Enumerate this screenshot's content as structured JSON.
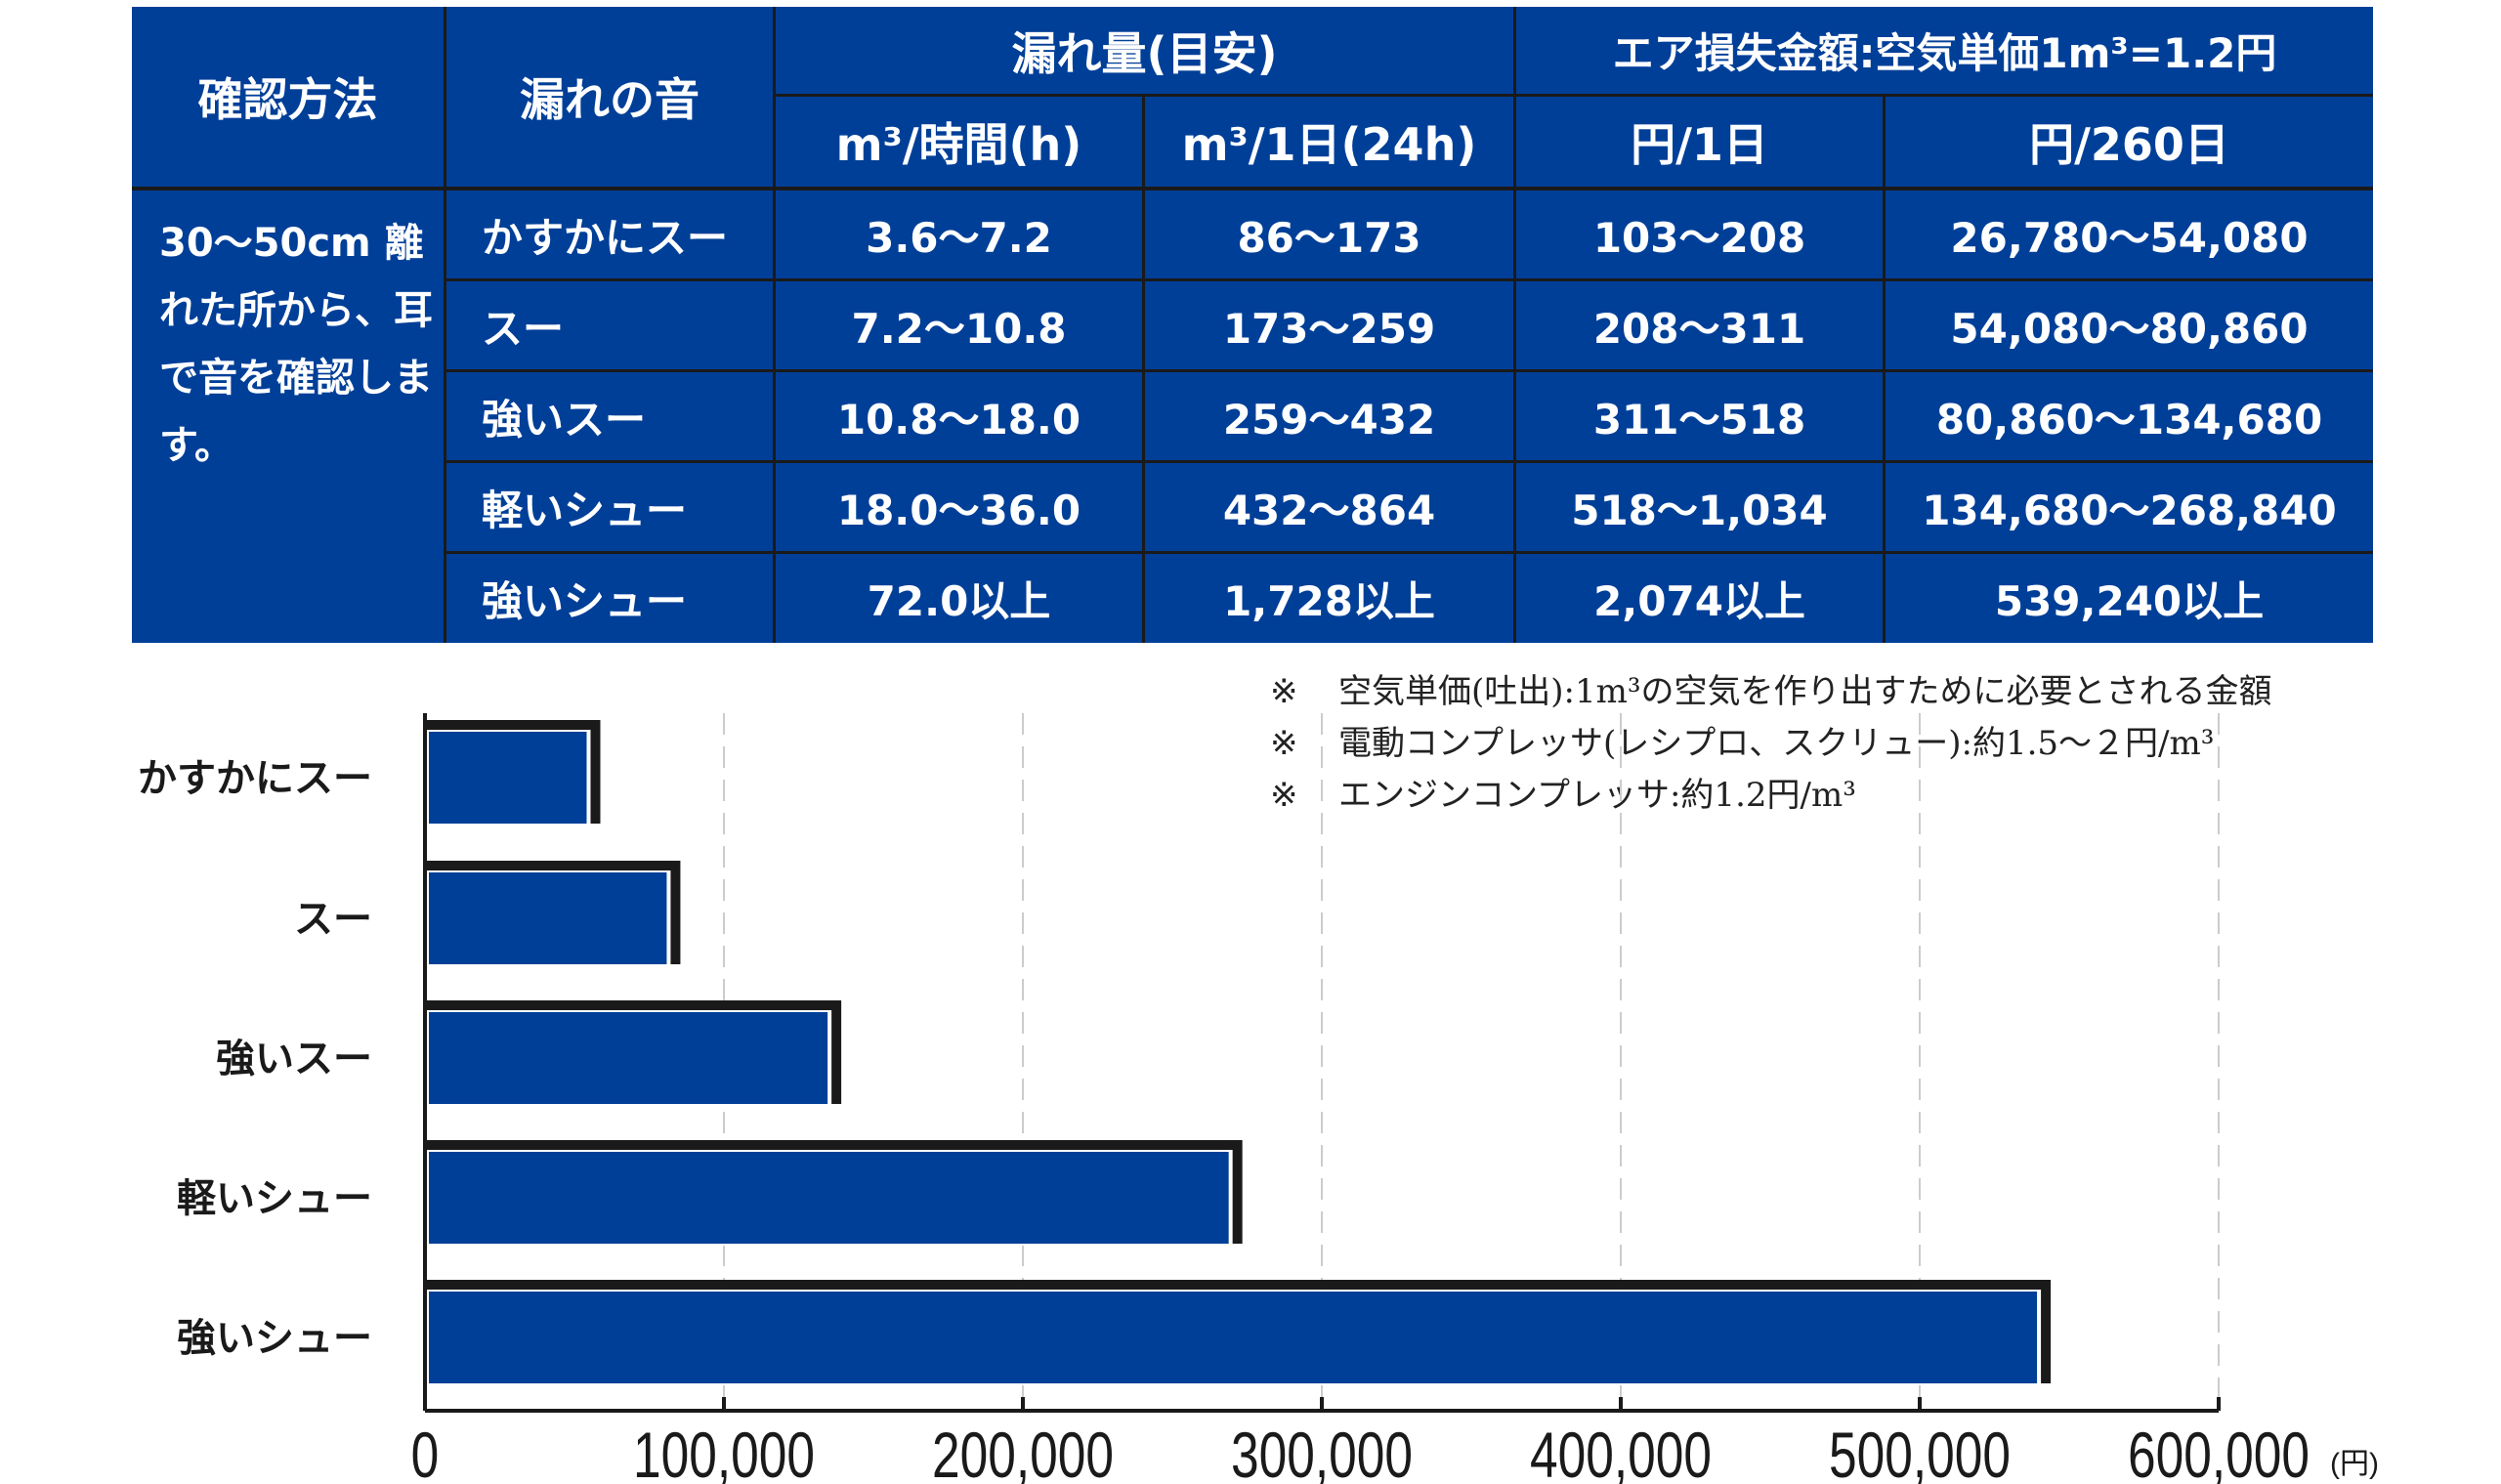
{
  "table": {
    "headers": {
      "method": "確認方法",
      "sound": "漏れの音",
      "leak_amount": "漏れ量(目安)",
      "loss_title": "エア損失金額:空気単価1m³=1.2円",
      "per_hour": "m³/時間(h)",
      "per_day": "m³/1日(24h)",
      "yen_day": "円/1日",
      "yen_260": "円/260日"
    },
    "method_text": "30〜50cm 離れた所から、耳で音を確認します。",
    "rows": [
      {
        "sound": "かすかにスー",
        "per_hour": "3.6〜7.2",
        "per_day": "86〜173",
        "yen_day": "103〜208",
        "yen_260": "26,780〜54,080"
      },
      {
        "sound": "スー",
        "per_hour": "7.2〜10.8",
        "per_day": "173〜259",
        "yen_day": "208〜311",
        "yen_260": "54,080〜80,860"
      },
      {
        "sound": "強いスー",
        "per_hour": "10.8〜18.0",
        "per_day": "259〜432",
        "yen_day": "311〜518",
        "yen_260": "80,860〜134,680"
      },
      {
        "sound": "軽いシュー",
        "per_hour": "18.0〜36.0",
        "per_day": "432〜864",
        "yen_day": "518〜1,034",
        "yen_260": "134,680〜268,840"
      },
      {
        "sound": "強いシュー",
        "per_hour": "72.0以上",
        "per_day": "1,728以上",
        "yen_day": "2,074以上",
        "yen_260": "539,240以上"
      }
    ]
  },
  "notes": [
    {
      "mark": "※",
      "text": "空気単価(吐出):1m³の空気を作り出すために必要とされる金額"
    },
    {
      "mark": "※",
      "text": "電動コンプレッサ(レシプロ、スクリュー):約1.5〜２円/m³"
    },
    {
      "mark": "※",
      "text": "エンジンコンプレッサ:約1.2円/m³"
    }
  ],
  "chart_data": {
    "type": "bar",
    "orientation": "horizontal",
    "categories": [
      "かすかにスー",
      "スー",
      "強いスー",
      "軽いシュー",
      "強いシュー"
    ],
    "values": [
      54080,
      80860,
      134680,
      268840,
      539240
    ],
    "xlim": [
      0,
      600000
    ],
    "xticks": [
      "0",
      "100,000",
      "200,000",
      "300,000",
      "400,000",
      "500,000",
      "600,000"
    ],
    "xtick_values": [
      0,
      100000,
      200000,
      300000,
      400000,
      500000,
      600000
    ],
    "xunit": "(円)",
    "grid": "vertical dashed",
    "colors": {
      "bar": "#003f98",
      "shadow": "#1a1a1a",
      "grid": "#cccccc"
    }
  }
}
